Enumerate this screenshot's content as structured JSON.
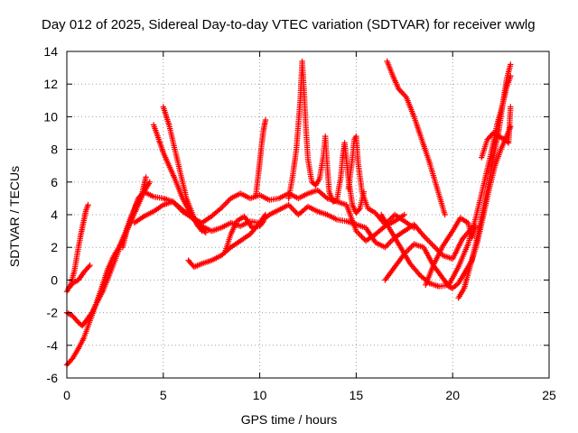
{
  "chart_data": {
    "type": "line",
    "title": "Day 012 of 2025, Sidereal Day-to-day VTEC variation (SDTVAR) for receiver wwlg",
    "xlabel": "GPS time / hours",
    "ylabel": "SDTVAR / TECUs",
    "xlim": [
      0,
      25
    ],
    "ylim": [
      -6,
      14
    ],
    "xticks": [
      0,
      5,
      10,
      15,
      20,
      25
    ],
    "yticks": [
      -6,
      -4,
      -2,
      0,
      2,
      4,
      6,
      8,
      10,
      12,
      14
    ],
    "grid": true,
    "marker": "+",
    "color": "#ff0000",
    "series": [
      {
        "name": "trace-1",
        "points": [
          [
            0.0,
            -5.2
          ],
          [
            0.3,
            -4.8
          ],
          [
            0.6,
            -4.2
          ],
          [
            0.9,
            -3.5
          ],
          [
            1.2,
            -2.5
          ],
          [
            1.5,
            -1.5
          ],
          [
            1.8,
            -0.5
          ],
          [
            2.1,
            0.6
          ],
          [
            2.4,
            1.4
          ],
          [
            2.7,
            2.0
          ],
          [
            3.0,
            2.8
          ],
          [
            3.3,
            3.8
          ],
          [
            3.6,
            4.6
          ],
          [
            3.9,
            5.3
          ],
          [
            4.1,
            6.3
          ]
        ]
      },
      {
        "name": "trace-2",
        "points": [
          [
            0.0,
            -2.0
          ],
          [
            0.3,
            -2.2
          ],
          [
            0.6,
            -2.6
          ],
          [
            0.8,
            -2.8
          ],
          [
            1.0,
            -2.5
          ],
          [
            1.3,
            -2.0
          ],
          [
            1.6,
            -1.3
          ],
          [
            1.9,
            -0.6
          ],
          [
            2.2,
            0.3
          ],
          [
            2.5,
            1.2
          ],
          [
            2.8,
            2.2
          ],
          [
            3.1,
            3.0
          ],
          [
            3.4,
            3.8
          ],
          [
            3.7,
            4.6
          ],
          [
            4.0,
            5.4
          ],
          [
            4.3,
            6.0
          ]
        ]
      },
      {
        "name": "trace-3",
        "points": [
          [
            0.0,
            -0.7
          ],
          [
            0.2,
            -0.3
          ],
          [
            0.4,
            0.6
          ],
          [
            0.6,
            2.0
          ],
          [
            0.8,
            3.2
          ],
          [
            1.0,
            4.3
          ],
          [
            1.1,
            4.6
          ]
        ]
      },
      {
        "name": "trace-4",
        "points": [
          [
            0.1,
            -0.5
          ],
          [
            0.3,
            -0.2
          ],
          [
            0.6,
            0.0
          ],
          [
            0.9,
            0.5
          ],
          [
            1.2,
            0.9
          ]
        ]
      },
      {
        "name": "trace-5",
        "points": [
          [
            2.9,
            2.0
          ],
          [
            3.1,
            3.0
          ],
          [
            3.4,
            4.0
          ],
          [
            3.7,
            5.0
          ],
          [
            4.0,
            5.4
          ],
          [
            4.5,
            5.1
          ],
          [
            5.0,
            5.0
          ],
          [
            5.5,
            4.8
          ],
          [
            6.0,
            4.3
          ],
          [
            6.5,
            3.8
          ],
          [
            7.0,
            3.5
          ],
          [
            7.5,
            3.9
          ],
          [
            8.0,
            4.4
          ],
          [
            8.5,
            5.0
          ],
          [
            9.0,
            5.3
          ],
          [
            9.5,
            5.0
          ],
          [
            10.0,
            5.2
          ],
          [
            10.5,
            4.9
          ],
          [
            11.0,
            5.0
          ],
          [
            11.5,
            5.3
          ],
          [
            12.0,
            5.0
          ],
          [
            12.5,
            5.3
          ],
          [
            13.0,
            5.5
          ],
          [
            13.5,
            5.0
          ],
          [
            14.0,
            4.8
          ],
          [
            14.5,
            4.6
          ],
          [
            15.0,
            3.0
          ],
          [
            15.5,
            2.4
          ],
          [
            16.0,
            2.8
          ],
          [
            16.5,
            3.3
          ],
          [
            17.0,
            3.6
          ],
          [
            17.5,
            4.0
          ]
        ]
      },
      {
        "name": "trace-6",
        "points": [
          [
            3.5,
            3.5
          ],
          [
            4.0,
            3.9
          ],
          [
            4.5,
            4.2
          ],
          [
            5.0,
            4.6
          ],
          [
            5.5,
            4.8
          ],
          [
            6.0,
            4.2
          ],
          [
            6.5,
            3.8
          ],
          [
            7.0,
            3.3
          ],
          [
            7.5,
            3.0
          ],
          [
            8.0,
            3.2
          ],
          [
            8.5,
            3.5
          ],
          [
            9.0,
            3.3
          ],
          [
            9.5,
            3.6
          ],
          [
            10.0,
            3.5
          ],
          [
            10.5,
            4.0
          ],
          [
            11.0,
            4.3
          ],
          [
            11.5,
            4.6
          ],
          [
            12.0,
            4.0
          ],
          [
            12.5,
            4.5
          ],
          [
            13.0,
            4.2
          ],
          [
            13.5,
            4.0
          ],
          [
            14.0,
            3.7
          ],
          [
            14.5,
            3.6
          ],
          [
            15.0,
            3.4
          ],
          [
            15.5,
            3.2
          ],
          [
            16.0,
            2.3
          ],
          [
            16.5,
            2.0
          ],
          [
            17.0,
            2.6
          ],
          [
            17.5,
            3.0
          ],
          [
            18.0,
            3.4
          ],
          [
            18.5,
            2.7
          ],
          [
            19.0,
            2.1
          ],
          [
            19.5,
            1.5
          ],
          [
            20.0,
            1.3
          ],
          [
            20.5,
            2.5
          ],
          [
            21.0,
            3.2
          ]
        ]
      },
      {
        "name": "trace-7",
        "points": [
          [
            4.5,
            9.5
          ],
          [
            4.8,
            8.5
          ],
          [
            5.0,
            7.8
          ],
          [
            5.3,
            7.0
          ],
          [
            5.6,
            6.2
          ],
          [
            6.0,
            5.0
          ],
          [
            6.4,
            4.1
          ],
          [
            6.8,
            3.3
          ],
          [
            7.2,
            2.9
          ]
        ]
      },
      {
        "name": "trace-8",
        "points": [
          [
            5.0,
            10.6
          ],
          [
            5.3,
            9.5
          ],
          [
            5.6,
            8.0
          ],
          [
            5.9,
            6.5
          ],
          [
            6.2,
            5.0
          ],
          [
            6.6,
            3.8
          ],
          [
            7.0,
            3.0
          ]
        ]
      },
      {
        "name": "trace-9",
        "points": [
          [
            6.3,
            1.2
          ],
          [
            6.6,
            0.8
          ],
          [
            7.0,
            1.0
          ],
          [
            7.5,
            1.2
          ],
          [
            8.0,
            1.5
          ],
          [
            8.5,
            2.0
          ],
          [
            9.0,
            2.4
          ],
          [
            9.5,
            2.8
          ],
          [
            10.0,
            3.5
          ],
          [
            10.3,
            4.0
          ]
        ]
      },
      {
        "name": "trace-10",
        "points": [
          [
            8.2,
            1.7
          ],
          [
            8.5,
            2.8
          ],
          [
            8.8,
            3.6
          ],
          [
            9.2,
            3.9
          ],
          [
            9.6,
            3.2
          ],
          [
            10.0,
            3.3
          ],
          [
            10.2,
            3.6
          ]
        ]
      },
      {
        "name": "trace-11",
        "points": [
          [
            9.8,
            5.2
          ],
          [
            9.9,
            6.2
          ],
          [
            10.0,
            7.2
          ],
          [
            10.1,
            8.3
          ],
          [
            10.2,
            9.2
          ],
          [
            10.3,
            9.8
          ]
        ]
      },
      {
        "name": "trace-12",
        "points": [
          [
            11.5,
            5.0
          ],
          [
            11.7,
            6.3
          ],
          [
            11.9,
            8.0
          ],
          [
            12.0,
            9.5
          ],
          [
            12.1,
            11.0
          ],
          [
            12.15,
            12.2
          ],
          [
            12.2,
            13.4
          ],
          [
            12.3,
            11.5
          ],
          [
            12.4,
            9.2
          ],
          [
            12.5,
            7.4
          ],
          [
            12.7,
            6.0
          ],
          [
            12.9,
            5.8
          ],
          [
            13.1,
            6.2
          ],
          [
            13.3,
            7.6
          ],
          [
            13.4,
            8.8
          ],
          [
            13.5,
            7.0
          ],
          [
            13.6,
            5.4
          ],
          [
            13.8,
            4.8
          ],
          [
            14.0,
            4.9
          ],
          [
            14.2,
            6.3
          ],
          [
            14.3,
            7.5
          ],
          [
            14.4,
            8.4
          ],
          [
            14.6,
            6.2
          ],
          [
            14.8,
            4.6
          ],
          [
            15.0,
            4.1
          ],
          [
            15.2,
            4.4
          ],
          [
            15.4,
            5.4
          ]
        ]
      },
      {
        "name": "trace-13",
        "points": [
          [
            14.6,
            5.6
          ],
          [
            14.8,
            7.4
          ],
          [
            14.9,
            8.6
          ],
          [
            15.0,
            8.8
          ],
          [
            15.1,
            7.2
          ],
          [
            15.3,
            5.4
          ],
          [
            15.6,
            4.4
          ],
          [
            16.0,
            4.1
          ],
          [
            16.5,
            3.4
          ],
          [
            17.0,
            4.0
          ],
          [
            17.5,
            3.6
          ],
          [
            18.0,
            3.2
          ]
        ]
      },
      {
        "name": "trace-14",
        "points": [
          [
            16.5,
            0.0
          ],
          [
            17.0,
            0.8
          ],
          [
            17.5,
            1.6
          ],
          [
            18.0,
            2.2
          ],
          [
            18.5,
            2.0
          ],
          [
            19.0,
            0.9
          ],
          [
            19.5,
            0.1
          ],
          [
            19.8,
            -0.4
          ],
          [
            20.0,
            -0.5
          ],
          [
            20.3,
            -0.2
          ],
          [
            20.6,
            0.4
          ],
          [
            21.0,
            1.2
          ],
          [
            21.3,
            2.4
          ],
          [
            21.6,
            4.0
          ],
          [
            21.9,
            5.6
          ],
          [
            22.2,
            7.0
          ],
          [
            22.5,
            8.0
          ],
          [
            22.8,
            8.8
          ],
          [
            23.0,
            9.4
          ]
        ]
      },
      {
        "name": "trace-15",
        "points": [
          [
            16.3,
            4.0
          ],
          [
            16.8,
            3.0
          ],
          [
            17.3,
            2.0
          ],
          [
            17.8,
            1.0
          ],
          [
            18.3,
            0.3
          ],
          [
            18.8,
            -0.2
          ],
          [
            19.3,
            -0.4
          ],
          [
            19.8,
            -0.3
          ],
          [
            20.3,
            0.8
          ],
          [
            20.8,
            2.2
          ],
          [
            21.2,
            3.8
          ],
          [
            21.6,
            5.8
          ],
          [
            22.0,
            7.8
          ],
          [
            22.3,
            9.5
          ],
          [
            22.6,
            10.8
          ],
          [
            22.8,
            11.8
          ],
          [
            23.0,
            12.5
          ]
        ]
      },
      {
        "name": "trace-16",
        "points": [
          [
            16.6,
            13.4
          ],
          [
            16.9,
            12.5
          ],
          [
            17.2,
            11.7
          ],
          [
            17.6,
            11.2
          ],
          [
            18.0,
            10.0
          ],
          [
            18.4,
            8.6
          ],
          [
            18.8,
            7.2
          ],
          [
            19.2,
            5.6
          ],
          [
            19.6,
            4.0
          ]
        ]
      },
      {
        "name": "trace-17",
        "points": [
          [
            18.6,
            -0.3
          ],
          [
            19.0,
            0.9
          ],
          [
            19.5,
            2.1
          ],
          [
            20.0,
            3.0
          ],
          [
            20.4,
            3.8
          ],
          [
            20.8,
            3.5
          ],
          [
            21.0,
            2.6
          ],
          [
            21.2,
            3.3
          ]
        ]
      },
      {
        "name": "trace-18",
        "points": [
          [
            20.3,
            -1.1
          ],
          [
            20.6,
            -0.5
          ],
          [
            20.9,
            0.8
          ],
          [
            21.2,
            2.2
          ],
          [
            21.5,
            3.8
          ],
          [
            21.8,
            5.5
          ],
          [
            22.1,
            7.4
          ],
          [
            22.4,
            9.2
          ],
          [
            22.6,
            10.8
          ],
          [
            22.8,
            12.3
          ],
          [
            23.0,
            13.2
          ]
        ]
      },
      {
        "name": "trace-19",
        "points": [
          [
            21.5,
            7.5
          ],
          [
            21.8,
            8.6
          ],
          [
            22.1,
            9.0
          ],
          [
            22.4,
            8.8
          ],
          [
            22.7,
            8.6
          ],
          [
            22.9,
            8.4
          ],
          [
            23.0,
            10.6
          ]
        ]
      }
    ]
  }
}
